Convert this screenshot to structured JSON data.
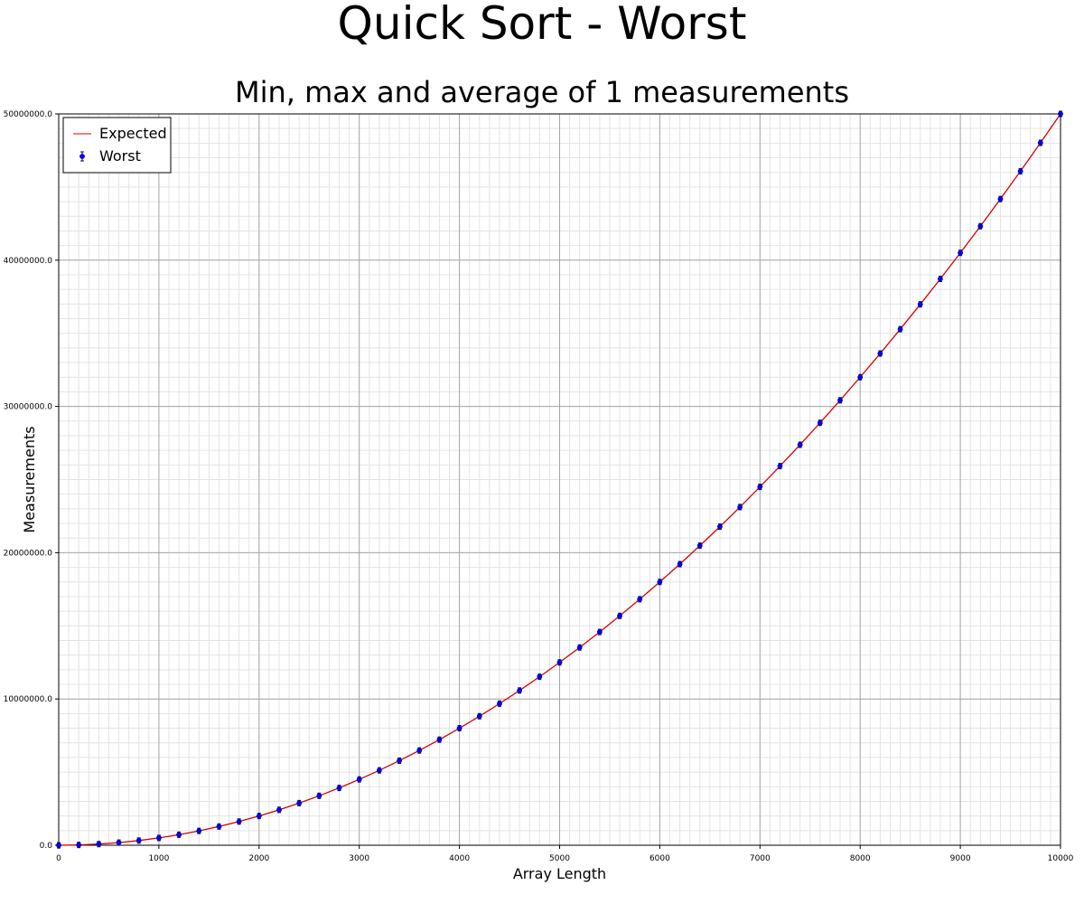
{
  "chart_data": {
    "type": "line",
    "title": "Quick Sort - Worst",
    "subtitle": "Min, max and average of 1 measurements",
    "xlabel": "Array Length",
    "ylabel": "Measurements",
    "xlim": [
      0,
      10000
    ],
    "ylim": [
      0,
      50000000
    ],
    "xticks": [
      0,
      1000,
      2000,
      3000,
      4000,
      5000,
      6000,
      7000,
      8000,
      9000,
      10000
    ],
    "xtick_labels": [
      "0",
      "1000",
      "2000",
      "3000",
      "4000",
      "5000",
      "6000",
      "7000",
      "8000",
      "9000",
      "10000"
    ],
    "yticks": [
      0,
      10000000,
      20000000,
      30000000,
      40000000,
      50000000
    ],
    "ytick_labels": [
      "0.0",
      "10000000.0",
      "20000000.0",
      "30000000.0",
      "40000000.0",
      "50000000.0"
    ],
    "grid": true,
    "legend_position": "top-left",
    "series": [
      {
        "name": "Expected",
        "style": "line",
        "color": "#d40000",
        "x": [
          0,
          200,
          400,
          600,
          800,
          1000,
          1200,
          1400,
          1600,
          1800,
          2000,
          2200,
          2400,
          2600,
          2800,
          3000,
          3200,
          3400,
          3600,
          3800,
          4000,
          4200,
          4400,
          4600,
          4800,
          5000,
          5200,
          5400,
          5600,
          5800,
          6000,
          6200,
          6400,
          6600,
          6800,
          7000,
          7200,
          7400,
          7600,
          7800,
          8000,
          8200,
          8400,
          8600,
          8800,
          9000,
          9200,
          9400,
          9600,
          9800,
          10000
        ],
        "y": [
          0,
          20000,
          80000,
          180000,
          320000,
          500000,
          720000,
          980000,
          1280000,
          1620000,
          2000000,
          2420000,
          2880000,
          3380000,
          3920000,
          4500000,
          5120000,
          5780000,
          6480000,
          7220000,
          8000000,
          8820000,
          9680000,
          10580000,
          11520000,
          12500000,
          13520000,
          14580000,
          15680000,
          16820000,
          18000000,
          19220000,
          20480000,
          21780000,
          23120000,
          24500000,
          25920000,
          27380000,
          28880000,
          30420000,
          32000000,
          33620000,
          35280000,
          36980000,
          38720000,
          40500000,
          42320000,
          44180000,
          46080000,
          48020000,
          50000000
        ]
      },
      {
        "name": "Worst",
        "style": "points-errorbar",
        "color": "#0000ff",
        "x": [
          0,
          200,
          400,
          600,
          800,
          1000,
          1200,
          1400,
          1600,
          1800,
          2000,
          2200,
          2400,
          2600,
          2800,
          3000,
          3200,
          3400,
          3600,
          3800,
          4000,
          4200,
          4400,
          4600,
          4800,
          5000,
          5200,
          5400,
          5600,
          5800,
          6000,
          6200,
          6400,
          6600,
          6800,
          7000,
          7200,
          7400,
          7600,
          7800,
          8000,
          8200,
          8400,
          8600,
          8800,
          9000,
          9200,
          9400,
          9600,
          9800,
          10000
        ],
        "y": [
          0,
          20000,
          80000,
          180000,
          320000,
          500000,
          720000,
          980000,
          1280000,
          1620000,
          2000000,
          2420000,
          2880000,
          3380000,
          3920000,
          4500000,
          5120000,
          5780000,
          6480000,
          7220000,
          8000000,
          8820000,
          9680000,
          10580000,
          11520000,
          12500000,
          13520000,
          14580000,
          15680000,
          16820000,
          18000000,
          19220000,
          20480000,
          21780000,
          23120000,
          24500000,
          25920000,
          27380000,
          28880000,
          30420000,
          32000000,
          33620000,
          35280000,
          36980000,
          38720000,
          40500000,
          42320000,
          44180000,
          46080000,
          48020000,
          50000000
        ]
      }
    ]
  }
}
